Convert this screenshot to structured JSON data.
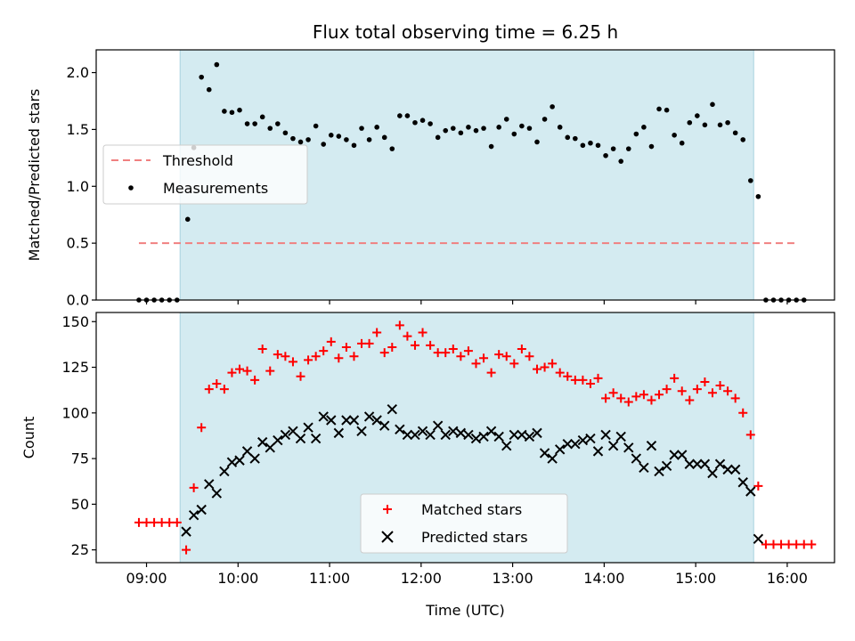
{
  "chart_data": [
    {
      "type": "scatter",
      "title": "Flux total observing time = 6.25 h",
      "ylabel": "Matched/Predicted stars",
      "xlabel": "",
      "ylim": [
        0,
        2.2
      ],
      "yticks": [
        "0.0",
        "0.5",
        "1.0",
        "1.5",
        "2.0"
      ],
      "xlim": [
        "08:27",
        "16:31"
      ],
      "legend_position": "center-left",
      "grid": false,
      "shaded_interval": {
        "start": "09:22",
        "end": "15:38",
        "color": "#d4ebf1"
      },
      "series": [
        {
          "name": "Threshold",
          "kind": "dashed-line",
          "color": "#f08080",
          "x": [
            "08:55",
            "16:07"
          ],
          "y": [
            0.5,
            0.5
          ]
        },
        {
          "name": "Measurements",
          "kind": "dot",
          "color": "#000000",
          "points": [
            [
              "08:55",
              0.0
            ],
            [
              "09:00",
              0.0
            ],
            [
              "09:05",
              0.0
            ],
            [
              "09:10",
              0.0
            ],
            [
              "09:15",
              0.0
            ],
            [
              "09:20",
              0.0
            ],
            [
              "09:27",
              0.71
            ],
            [
              "09:31",
              1.34
            ],
            [
              "09:36",
              1.96
            ],
            [
              "09:41",
              1.85
            ],
            [
              "09:46",
              2.07
            ],
            [
              "09:51",
              1.66
            ],
            [
              "09:56",
              1.65
            ],
            [
              "10:01",
              1.67
            ],
            [
              "10:06",
              1.55
            ],
            [
              "10:11",
              1.55
            ],
            [
              "10:16",
              1.61
            ],
            [
              "10:21",
              1.51
            ],
            [
              "10:26",
              1.55
            ],
            [
              "10:31",
              1.47
            ],
            [
              "10:36",
              1.42
            ],
            [
              "10:41",
              1.39
            ],
            [
              "10:46",
              1.41
            ],
            [
              "10:51",
              1.53
            ],
            [
              "10:56",
              1.37
            ],
            [
              "11:01",
              1.45
            ],
            [
              "11:06",
              1.44
            ],
            [
              "11:11",
              1.41
            ],
            [
              "11:16",
              1.36
            ],
            [
              "11:21",
              1.51
            ],
            [
              "11:26",
              1.41
            ],
            [
              "11:31",
              1.52
            ],
            [
              "11:36",
              1.43
            ],
            [
              "11:41",
              1.33
            ],
            [
              "11:46",
              1.62
            ],
            [
              "11:51",
              1.62
            ],
            [
              "11:56",
              1.56
            ],
            [
              "12:01",
              1.58
            ],
            [
              "12:06",
              1.55
            ],
            [
              "12:11",
              1.43
            ],
            [
              "12:16",
              1.49
            ],
            [
              "12:21",
              1.51
            ],
            [
              "12:26",
              1.47
            ],
            [
              "12:31",
              1.52
            ],
            [
              "12:36",
              1.49
            ],
            [
              "12:41",
              1.51
            ],
            [
              "12:46",
              1.35
            ],
            [
              "12:51",
              1.52
            ],
            [
              "12:56",
              1.59
            ],
            [
              "13:01",
              1.46
            ],
            [
              "13:06",
              1.53
            ],
            [
              "13:11",
              1.51
            ],
            [
              "13:16",
              1.39
            ],
            [
              "13:21",
              1.59
            ],
            [
              "13:26",
              1.7
            ],
            [
              "13:31",
              1.52
            ],
            [
              "13:36",
              1.43
            ],
            [
              "13:41",
              1.42
            ],
            [
              "13:46",
              1.36
            ],
            [
              "13:51",
              1.38
            ],
            [
              "13:56",
              1.36
            ],
            [
              "14:01",
              1.27
            ],
            [
              "14:06",
              1.33
            ],
            [
              "14:11",
              1.22
            ],
            [
              "14:16",
              1.33
            ],
            [
              "14:21",
              1.46
            ],
            [
              "14:26",
              1.52
            ],
            [
              "14:31",
              1.35
            ],
            [
              "14:36",
              1.68
            ],
            [
              "14:41",
              1.67
            ],
            [
              "14:46",
              1.45
            ],
            [
              "14:51",
              1.38
            ],
            [
              "14:56",
              1.56
            ],
            [
              "15:01",
              1.62
            ],
            [
              "15:06",
              1.54
            ],
            [
              "15:11",
              1.72
            ],
            [
              "15:16",
              1.54
            ],
            [
              "15:21",
              1.56
            ],
            [
              "15:26",
              1.47
            ],
            [
              "15:31",
              1.41
            ],
            [
              "15:36",
              1.05
            ],
            [
              "15:41",
              0.91
            ],
            [
              "15:46",
              0.0
            ],
            [
              "15:51",
              0.0
            ],
            [
              "15:56",
              0.0
            ],
            [
              "16:01",
              0.0
            ],
            [
              "16:06",
              0.0
            ],
            [
              "16:11",
              0.0
            ]
          ]
        }
      ]
    },
    {
      "type": "scatter",
      "title": "",
      "ylabel": "Count",
      "xlabel": "Time (UTC)",
      "ylim": [
        18,
        155
      ],
      "yticks": [
        "25",
        "50",
        "75",
        "100",
        "125",
        "150"
      ],
      "xlim": [
        "08:27",
        "16:31"
      ],
      "xticks": [
        "09:00",
        "10:00",
        "11:00",
        "12:00",
        "13:00",
        "14:00",
        "15:00",
        "16:00"
      ],
      "legend_position": "lower-center",
      "grid": false,
      "shaded_interval": {
        "start": "09:22",
        "end": "15:38",
        "color": "#d4ebf1"
      },
      "series": [
        {
          "name": "Matched stars",
          "kind": "plus",
          "color": "#ff0000",
          "points": [
            [
              "08:55",
              40
            ],
            [
              "09:00",
              40
            ],
            [
              "09:05",
              40
            ],
            [
              "09:10",
              40
            ],
            [
              "09:15",
              40
            ],
            [
              "09:20",
              40
            ],
            [
              "09:26",
              25
            ],
            [
              "09:31",
              59
            ],
            [
              "09:36",
              92
            ],
            [
              "09:41",
              113
            ],
            [
              "09:46",
              116
            ],
            [
              "09:51",
              113
            ],
            [
              "09:56",
              122
            ],
            [
              "10:01",
              124
            ],
            [
              "10:06",
              123
            ],
            [
              "10:11",
              118
            ],
            [
              "10:16",
              135
            ],
            [
              "10:21",
              123
            ],
            [
              "10:26",
              132
            ],
            [
              "10:31",
              131
            ],
            [
              "10:36",
              128
            ],
            [
              "10:41",
              120
            ],
            [
              "10:46",
              129
            ],
            [
              "10:51",
              131
            ],
            [
              "10:56",
              134
            ],
            [
              "11:01",
              139
            ],
            [
              "11:06",
              130
            ],
            [
              "11:11",
              136
            ],
            [
              "11:16",
              131
            ],
            [
              "11:21",
              138
            ],
            [
              "11:26",
              138
            ],
            [
              "11:31",
              144
            ],
            [
              "11:36",
              133
            ],
            [
              "11:41",
              136
            ],
            [
              "11:46",
              148
            ],
            [
              "11:51",
              142
            ],
            [
              "11:56",
              137
            ],
            [
              "12:01",
              144
            ],
            [
              "12:06",
              137
            ],
            [
              "12:11",
              133
            ],
            [
              "12:16",
              133
            ],
            [
              "12:21",
              135
            ],
            [
              "12:26",
              131
            ],
            [
              "12:31",
              134
            ],
            [
              "12:36",
              127
            ],
            [
              "12:41",
              130
            ],
            [
              "12:46",
              122
            ],
            [
              "12:51",
              132
            ],
            [
              "12:56",
              131
            ],
            [
              "13:01",
              127
            ],
            [
              "13:06",
              135
            ],
            [
              "13:11",
              131
            ],
            [
              "13:16",
              124
            ],
            [
              "13:21",
              125
            ],
            [
              "13:26",
              127
            ],
            [
              "13:31",
              122
            ],
            [
              "13:36",
              120
            ],
            [
              "13:41",
              118
            ],
            [
              "13:46",
              118
            ],
            [
              "13:51",
              116
            ],
            [
              "13:56",
              119
            ],
            [
              "14:01",
              108
            ],
            [
              "14:06",
              111
            ],
            [
              "14:11",
              108
            ],
            [
              "14:16",
              106
            ],
            [
              "14:21",
              109
            ],
            [
              "14:26",
              110
            ],
            [
              "14:31",
              107
            ],
            [
              "14:36",
              110
            ],
            [
              "14:41",
              113
            ],
            [
              "14:46",
              119
            ],
            [
              "14:51",
              112
            ],
            [
              "14:56",
              107
            ],
            [
              "15:01",
              113
            ],
            [
              "15:06",
              117
            ],
            [
              "15:11",
              111
            ],
            [
              "15:16",
              115
            ],
            [
              "15:21",
              112
            ],
            [
              "15:26",
              108
            ],
            [
              "15:31",
              100
            ],
            [
              "15:36",
              88
            ],
            [
              "15:41",
              60
            ],
            [
              "15:46",
              28
            ],
            [
              "15:51",
              28
            ],
            [
              "15:56",
              28
            ],
            [
              "16:01",
              28
            ],
            [
              "16:06",
              28
            ],
            [
              "16:11",
              28
            ],
            [
              "16:16",
              28
            ]
          ]
        },
        {
          "name": "Predicted stars",
          "kind": "cross",
          "color": "#000000",
          "points": [
            [
              "09:26",
              35
            ],
            [
              "09:31",
              44
            ],
            [
              "09:36",
              47
            ],
            [
              "09:41",
              61
            ],
            [
              "09:46",
              56
            ],
            [
              "09:51",
              68
            ],
            [
              "09:56",
              73
            ],
            [
              "10:01",
              74
            ],
            [
              "10:06",
              79
            ],
            [
              "10:11",
              75
            ],
            [
              "10:16",
              84
            ],
            [
              "10:21",
              81
            ],
            [
              "10:26",
              85
            ],
            [
              "10:31",
              88
            ],
            [
              "10:36",
              90
            ],
            [
              "10:41",
              86
            ],
            [
              "10:46",
              92
            ],
            [
              "10:51",
              86
            ],
            [
              "10:56",
              98
            ],
            [
              "11:01",
              96
            ],
            [
              "11:06",
              89
            ],
            [
              "11:11",
              96
            ],
            [
              "11:16",
              96
            ],
            [
              "11:21",
              90
            ],
            [
              "11:26",
              98
            ],
            [
              "11:31",
              96
            ],
            [
              "11:36",
              93
            ],
            [
              "11:41",
              102
            ],
            [
              "11:46",
              91
            ],
            [
              "11:51",
              88
            ],
            [
              "11:56",
              88
            ],
            [
              "12:01",
              90
            ],
            [
              "12:06",
              88
            ],
            [
              "12:11",
              93
            ],
            [
              "12:16",
              88
            ],
            [
              "12:21",
              90
            ],
            [
              "12:26",
              89
            ],
            [
              "12:31",
              88
            ],
            [
              "12:36",
              86
            ],
            [
              "12:41",
              87
            ],
            [
              "12:46",
              90
            ],
            [
              "12:51",
              87
            ],
            [
              "12:56",
              82
            ],
            [
              "13:01",
              88
            ],
            [
              "13:06",
              88
            ],
            [
              "13:11",
              87
            ],
            [
              "13:16",
              89
            ],
            [
              "13:21",
              78
            ],
            [
              "13:26",
              75
            ],
            [
              "13:31",
              80
            ],
            [
              "13:36",
              83
            ],
            [
              "13:41",
              83
            ],
            [
              "13:46",
              85
            ],
            [
              "13:51",
              86
            ],
            [
              "13:56",
              79
            ],
            [
              "14:01",
              88
            ],
            [
              "14:06",
              82
            ],
            [
              "14:11",
              87
            ],
            [
              "14:16",
              81
            ],
            [
              "14:21",
              75
            ],
            [
              "14:26",
              70
            ],
            [
              "14:31",
              82
            ],
            [
              "14:36",
              68
            ],
            [
              "14:41",
              71
            ],
            [
              "14:46",
              77
            ],
            [
              "14:51",
              77
            ],
            [
              "14:56",
              72
            ],
            [
              "15:01",
              72
            ],
            [
              "15:06",
              72
            ],
            [
              "15:11",
              67
            ],
            [
              "15:16",
              72
            ],
            [
              "15:21",
              69
            ],
            [
              "15:26",
              69
            ],
            [
              "15:31",
              62
            ],
            [
              "15:36",
              57
            ],
            [
              "15:41",
              31
            ]
          ]
        }
      ]
    }
  ]
}
